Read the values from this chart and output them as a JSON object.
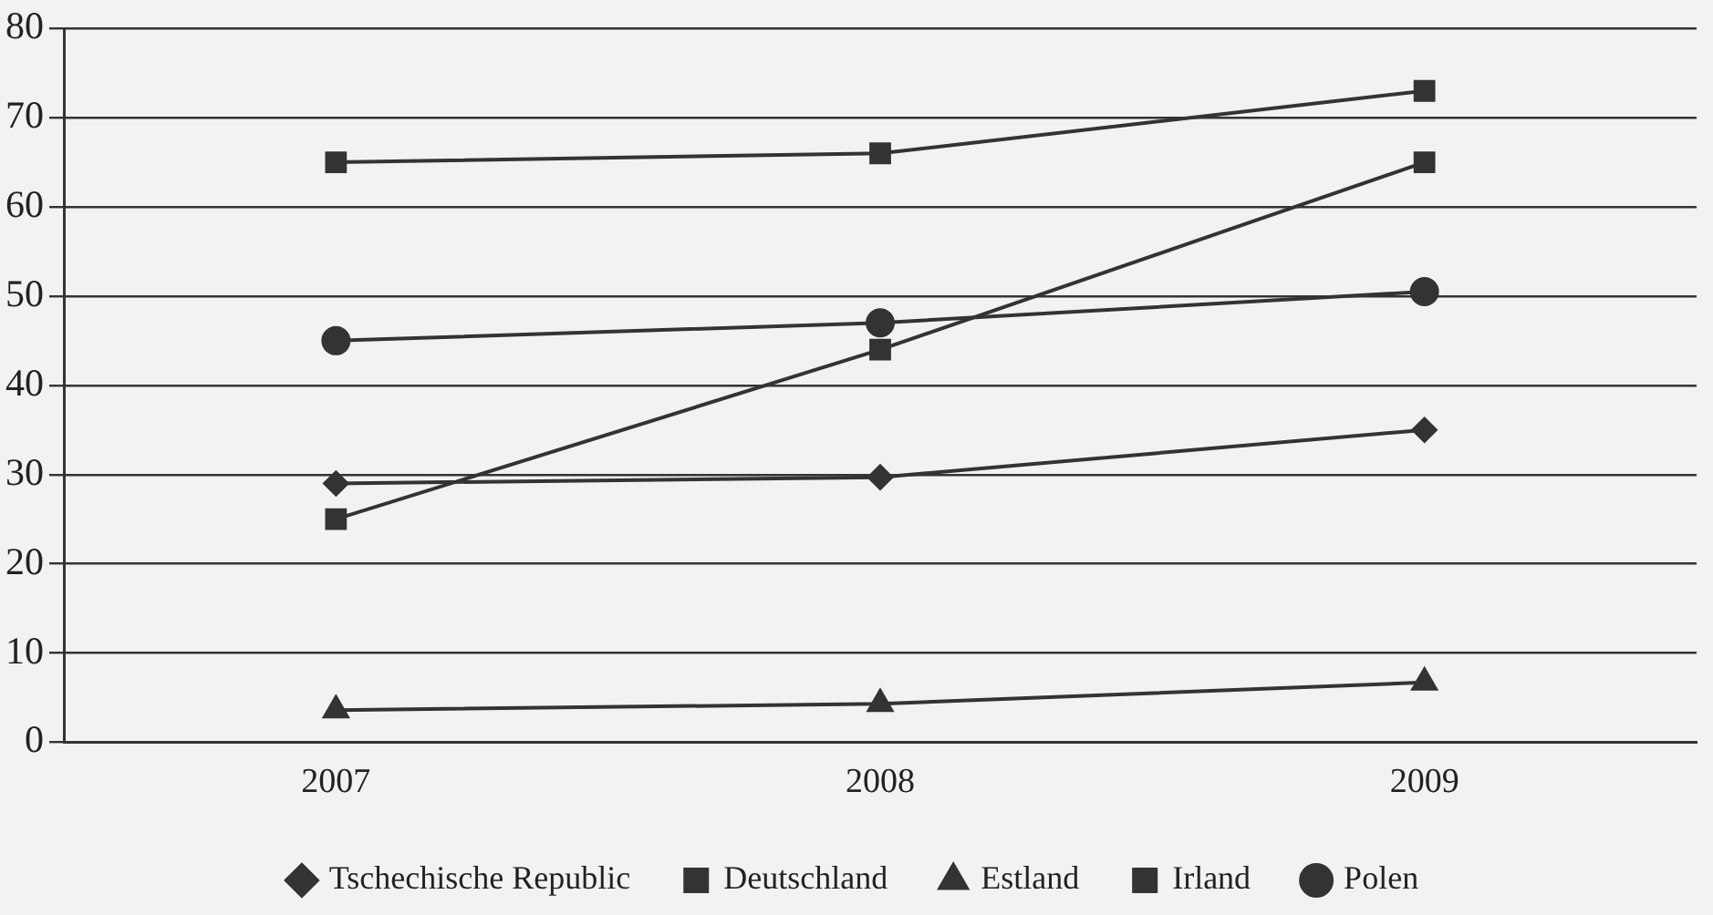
{
  "chart_data": {
    "type": "line",
    "categories": [
      "2007",
      "2008",
      "2009"
    ],
    "series": [
      {
        "name": "Tschechische Republic",
        "color": "#333333",
        "marker": "diamond",
        "values": [
          29,
          29.7,
          35
        ]
      },
      {
        "name": "Deutschland",
        "color": "#333333",
        "marker": "square",
        "values": [
          65,
          66,
          73
        ]
      },
      {
        "name": "Estland",
        "color": "#333333",
        "marker": "triangle",
        "values": [
          3.6,
          4.3,
          6.7
        ]
      },
      {
        "name": "Irland",
        "color": "#333333",
        "marker": "square",
        "values": [
          25,
          44,
          65
        ]
      },
      {
        "name": "Polen",
        "color": "#333333",
        "marker": "circle",
        "values": [
          45,
          47,
          50.5
        ]
      }
    ],
    "ylim": [
      0,
      80
    ],
    "yticks": [
      0,
      10,
      20,
      30,
      40,
      50,
      60,
      70,
      80
    ],
    "grid": "y",
    "legend": "bottom",
    "line_style": "solid"
  }
}
